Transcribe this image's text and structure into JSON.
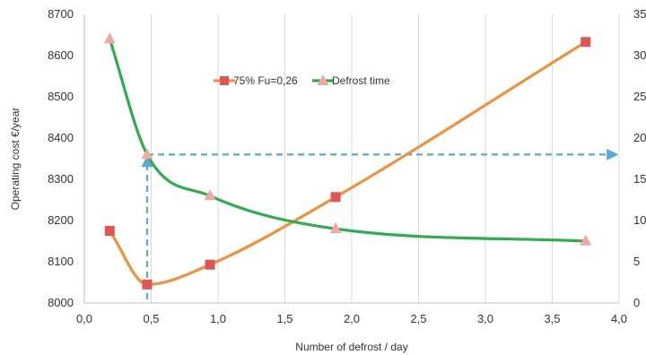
{
  "chart_data": {
    "type": "line",
    "title": "",
    "xlabel": "Number of defrost / day",
    "ylabel": "Operating cost   €/year",
    "y2label": "",
    "xlim": [
      0,
      4
    ],
    "ylim": [
      8000,
      8700
    ],
    "y2lim": [
      0,
      35
    ],
    "x_ticks": [
      "0,0",
      "0,5",
      "1,0",
      "1,5",
      "2,0",
      "2,5",
      "3,0",
      "3,5",
      "4,0"
    ],
    "y_ticks": [
      "8000",
      "8100",
      "8200",
      "8300",
      "8400",
      "8500",
      "8600",
      "8700"
    ],
    "y2_ticks": [
      "0",
      "5",
      "10",
      "15",
      "20",
      "25",
      "30",
      "35"
    ],
    "grid": "vertical",
    "legend": {
      "position": "upper-center"
    },
    "series": [
      {
        "name": "75% Fu=0,26",
        "axis": "left",
        "color": "#F0923A",
        "marker": "square",
        "marker_color": "#E05555",
        "x": [
          0.19,
          0.47,
          0.94,
          1.88,
          3.75
        ],
        "y": [
          8175,
          8045,
          8093,
          8257,
          8633
        ]
      },
      {
        "name": "Defrost  time",
        "axis": "right",
        "color": "#2DAE4E",
        "marker": "triangle",
        "marker_color": "#EFA99E",
        "x": [
          0.19,
          0.47,
          0.94,
          1.88,
          3.75
        ],
        "y": [
          32,
          18,
          13,
          9,
          7.5
        ]
      }
    ],
    "annotation": {
      "type": "dashed-arrows",
      "color": "#5AA9DA",
      "x": 0.47,
      "y2": 18
    }
  }
}
